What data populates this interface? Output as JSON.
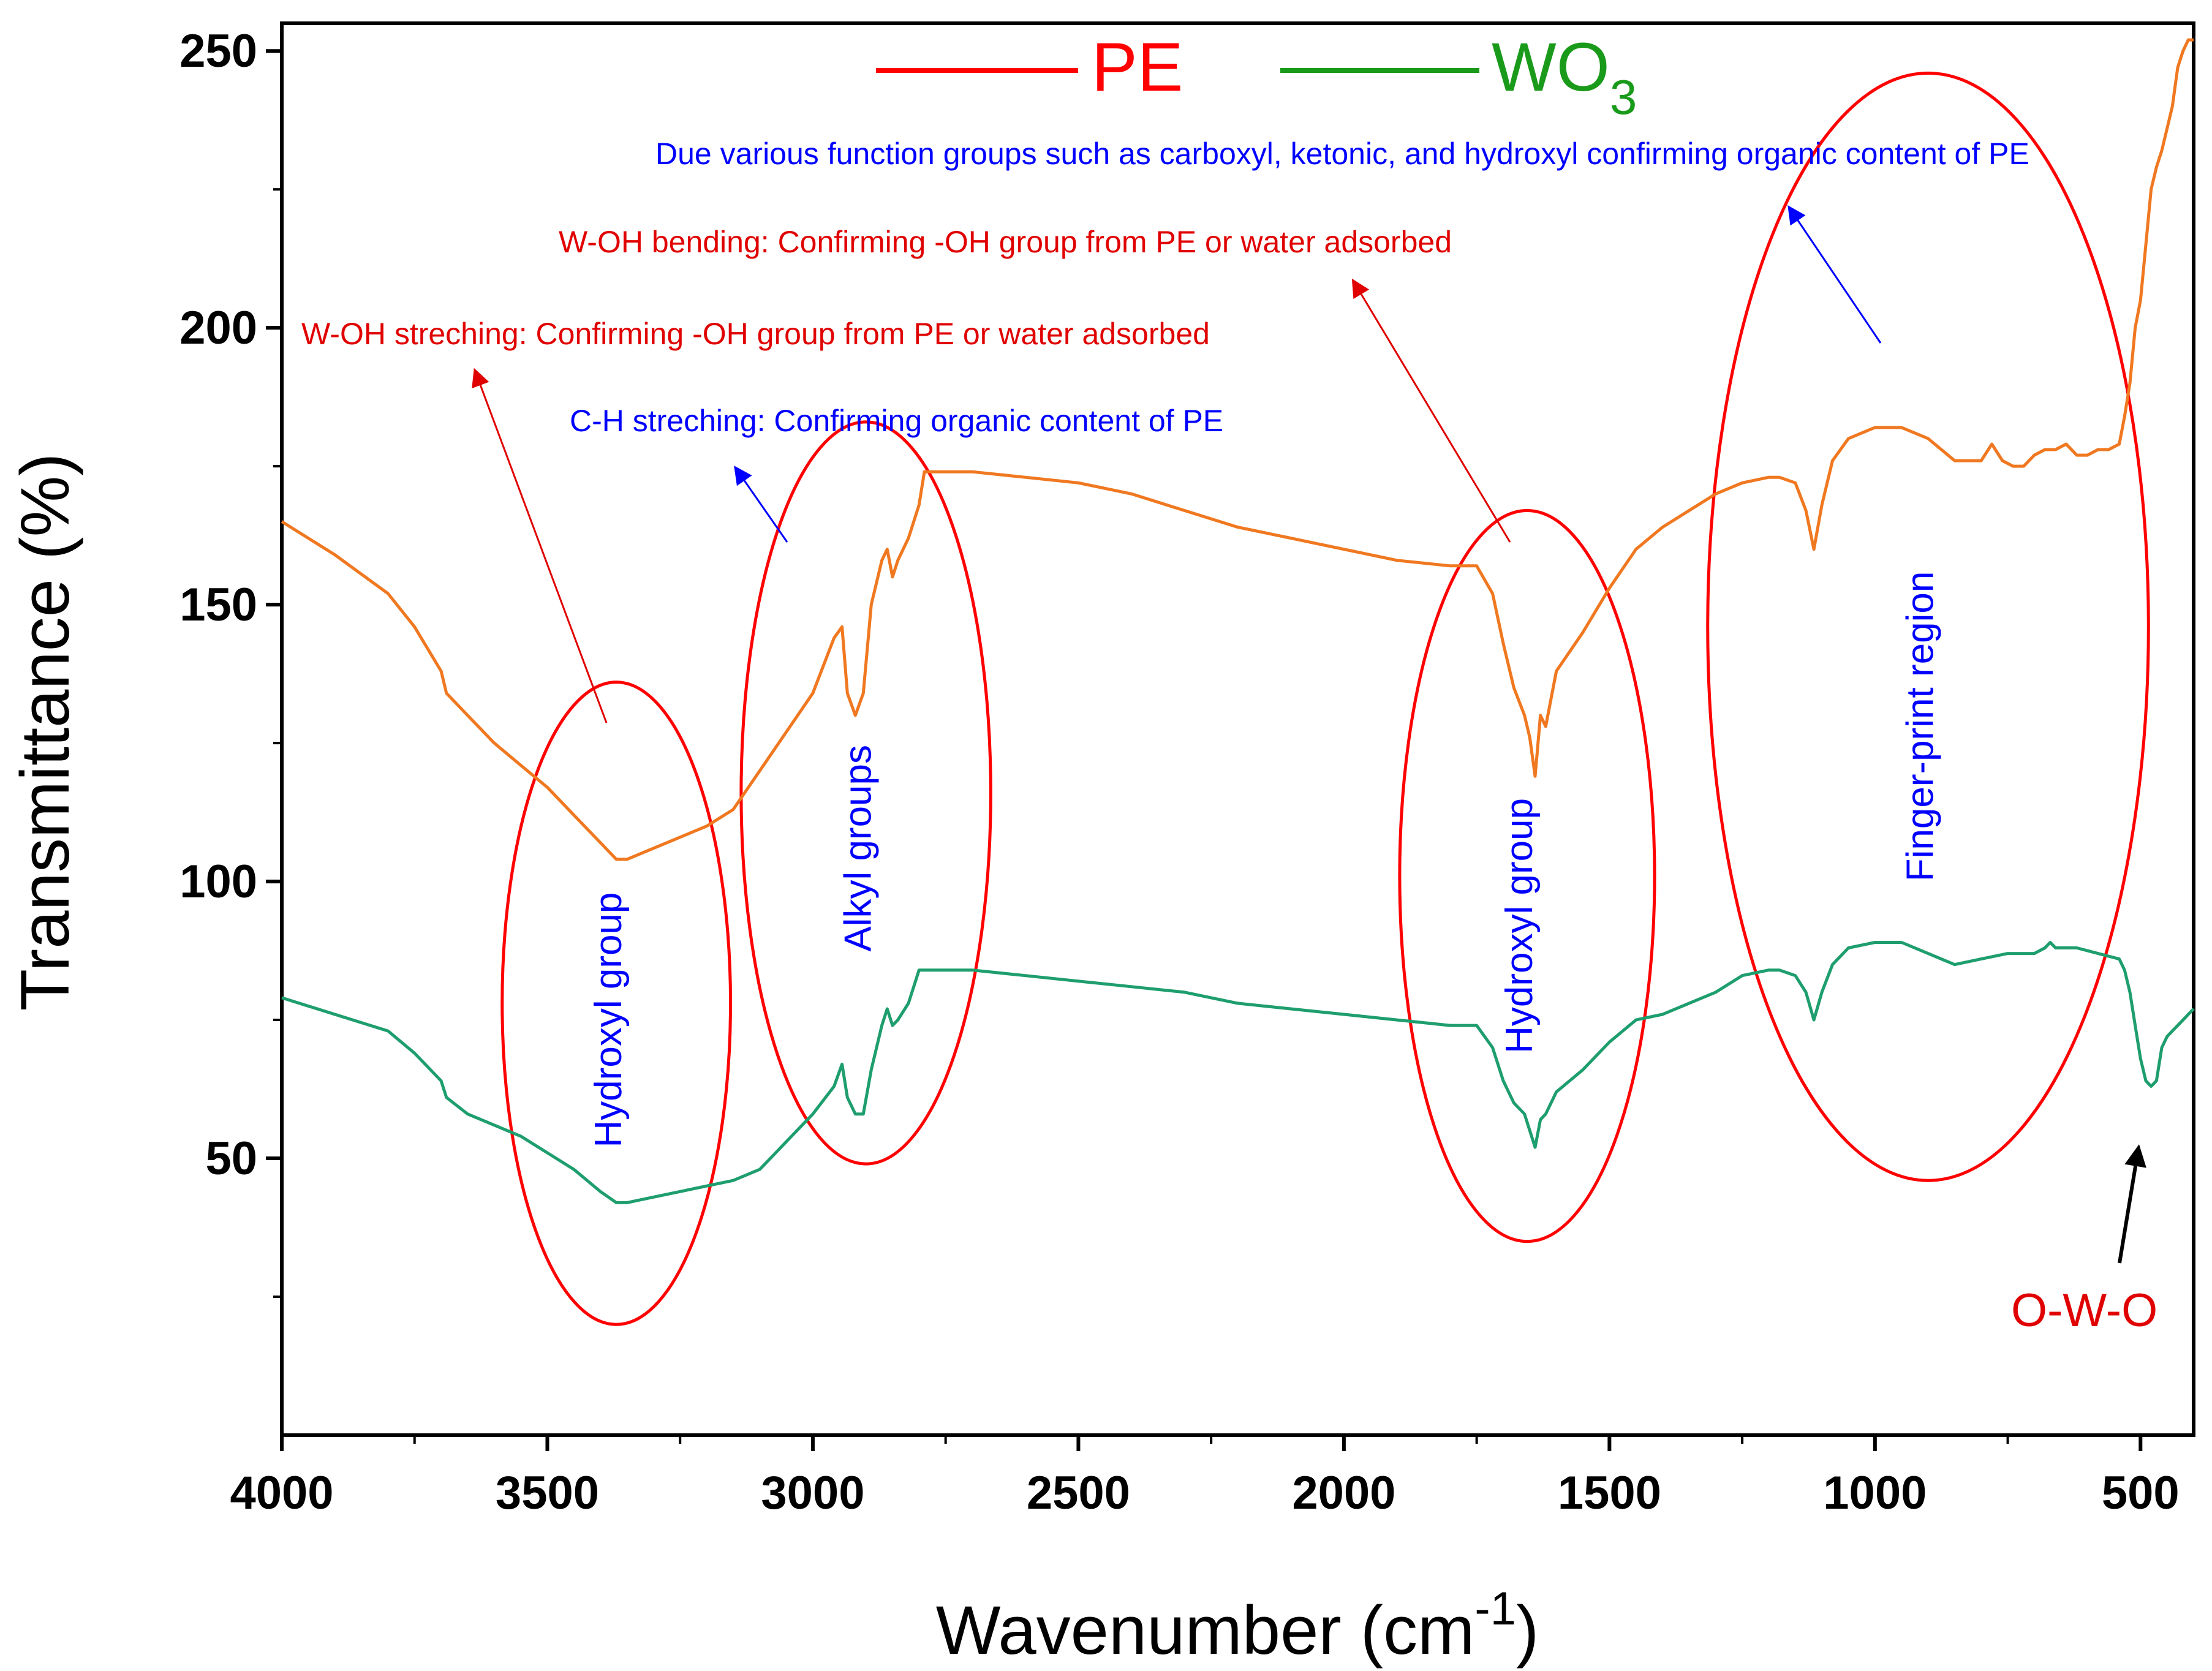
{
  "chart_data": {
    "type": "line",
    "title": "",
    "xlabel": "Wavenumber (cm",
    "xlabel_sup": "-1",
    "xlabel_end": ")",
    "ylabel": "Transmittance (%)",
    "xlim": [
      4000,
      400
    ],
    "ylim": [
      0,
      255
    ],
    "x_ticks": [
      4000,
      3500,
      3000,
      2500,
      2000,
      1500,
      1000,
      500
    ],
    "y_ticks": [
      50,
      100,
      150,
      200,
      250
    ],
    "legend": {
      "placement": "top-center",
      "entries": [
        {
          "name": "PE",
          "color": "#ff0000",
          "sub": ""
        },
        {
          "name": "WO",
          "color": "#1a9a1a",
          "sub": "3"
        }
      ]
    },
    "series": [
      {
        "name": "PE",
        "color": "#f07820",
        "points": [
          [
            4000,
            165
          ],
          [
            3900,
            159
          ],
          [
            3800,
            152
          ],
          [
            3750,
            146
          ],
          [
            3700,
            138
          ],
          [
            3690,
            134
          ],
          [
            3650,
            130
          ],
          [
            3600,
            125
          ],
          [
            3550,
            121
          ],
          [
            3500,
            117
          ],
          [
            3450,
            112
          ],
          [
            3400,
            107
          ],
          [
            3370,
            104
          ],
          [
            3350,
            104
          ],
          [
            3300,
            106
          ],
          [
            3250,
            108
          ],
          [
            3200,
            110
          ],
          [
            3150,
            113
          ],
          [
            3100,
            120
          ],
          [
            3050,
            127
          ],
          [
            3000,
            134
          ],
          [
            2960,
            144
          ],
          [
            2945,
            146
          ],
          [
            2935,
            134
          ],
          [
            2920,
            130
          ],
          [
            2905,
            134
          ],
          [
            2890,
            150
          ],
          [
            2870,
            158
          ],
          [
            2860,
            160
          ],
          [
            2850,
            155
          ],
          [
            2840,
            158
          ],
          [
            2820,
            162
          ],
          [
            2800,
            168
          ],
          [
            2790,
            174
          ],
          [
            2700,
            174
          ],
          [
            2600,
            173
          ],
          [
            2500,
            172
          ],
          [
            2400,
            170
          ],
          [
            2300,
            167
          ],
          [
            2200,
            164
          ],
          [
            2100,
            162
          ],
          [
            2000,
            160
          ],
          [
            1900,
            158
          ],
          [
            1800,
            157
          ],
          [
            1750,
            157
          ],
          [
            1720,
            152
          ],
          [
            1700,
            143
          ],
          [
            1680,
            135
          ],
          [
            1660,
            130
          ],
          [
            1650,
            126
          ],
          [
            1640,
            119
          ],
          [
            1630,
            130
          ],
          [
            1620,
            128
          ],
          [
            1600,
            138
          ],
          [
            1550,
            145
          ],
          [
            1500,
            153
          ],
          [
            1450,
            160
          ],
          [
            1400,
            164
          ],
          [
            1350,
            167
          ],
          [
            1300,
            170
          ],
          [
            1250,
            172
          ],
          [
            1200,
            173
          ],
          [
            1180,
            173
          ],
          [
            1150,
            172
          ],
          [
            1130,
            167
          ],
          [
            1115,
            160
          ],
          [
            1100,
            168
          ],
          [
            1080,
            176
          ],
          [
            1050,
            180
          ],
          [
            1000,
            182
          ],
          [
            950,
            182
          ],
          [
            900,
            180
          ],
          [
            850,
            176
          ],
          [
            800,
            176
          ],
          [
            780,
            179
          ],
          [
            760,
            176
          ],
          [
            740,
            175
          ],
          [
            720,
            175
          ],
          [
            700,
            177
          ],
          [
            680,
            178
          ],
          [
            660,
            178
          ],
          [
            640,
            179
          ],
          [
            620,
            177
          ],
          [
            600,
            177
          ],
          [
            580,
            178
          ],
          [
            560,
            178
          ],
          [
            540,
            179
          ],
          [
            530,
            184
          ],
          [
            520,
            190
          ],
          [
            510,
            200
          ],
          [
            500,
            205
          ],
          [
            490,
            215
          ],
          [
            480,
            225
          ],
          [
            470,
            229
          ],
          [
            460,
            232
          ],
          [
            450,
            236
          ],
          [
            440,
            240
          ],
          [
            430,
            247
          ],
          [
            420,
            250
          ],
          [
            410,
            252
          ],
          [
            400,
            252
          ]
        ]
      },
      {
        "name": "WO3",
        "color": "#1e9e6e",
        "points": [
          [
            4000,
            79
          ],
          [
            3900,
            76
          ],
          [
            3800,
            73
          ],
          [
            3750,
            69
          ],
          [
            3700,
            64
          ],
          [
            3690,
            61
          ],
          [
            3650,
            58
          ],
          [
            3600,
            56
          ],
          [
            3550,
            54
          ],
          [
            3500,
            51
          ],
          [
            3450,
            48
          ],
          [
            3400,
            44
          ],
          [
            3370,
            42
          ],
          [
            3350,
            42
          ],
          [
            3300,
            43
          ],
          [
            3250,
            44
          ],
          [
            3200,
            45
          ],
          [
            3150,
            46
          ],
          [
            3100,
            48
          ],
          [
            3050,
            53
          ],
          [
            3000,
            58
          ],
          [
            2960,
            63
          ],
          [
            2945,
            67
          ],
          [
            2935,
            61
          ],
          [
            2920,
            58
          ],
          [
            2905,
            58
          ],
          [
            2890,
            66
          ],
          [
            2870,
            74
          ],
          [
            2860,
            77
          ],
          [
            2850,
            74
          ],
          [
            2840,
            75
          ],
          [
            2820,
            78
          ],
          [
            2800,
            84
          ],
          [
            2700,
            84
          ],
          [
            2600,
            83
          ],
          [
            2500,
            82
          ],
          [
            2400,
            81
          ],
          [
            2300,
            80
          ],
          [
            2200,
            78
          ],
          [
            2100,
            77
          ],
          [
            2000,
            76
          ],
          [
            1900,
            75
          ],
          [
            1800,
            74
          ],
          [
            1750,
            74
          ],
          [
            1720,
            70
          ],
          [
            1700,
            64
          ],
          [
            1680,
            60
          ],
          [
            1660,
            58
          ],
          [
            1650,
            55
          ],
          [
            1640,
            52
          ],
          [
            1630,
            57
          ],
          [
            1620,
            58
          ],
          [
            1600,
            62
          ],
          [
            1550,
            66
          ],
          [
            1500,
            71
          ],
          [
            1450,
            75
          ],
          [
            1400,
            76
          ],
          [
            1350,
            78
          ],
          [
            1300,
            80
          ],
          [
            1250,
            83
          ],
          [
            1200,
            84
          ],
          [
            1180,
            84
          ],
          [
            1150,
            83
          ],
          [
            1130,
            80
          ],
          [
            1115,
            75
          ],
          [
            1100,
            80
          ],
          [
            1080,
            85
          ],
          [
            1050,
            88
          ],
          [
            1000,
            89
          ],
          [
            950,
            89
          ],
          [
            900,
            87
          ],
          [
            850,
            85
          ],
          [
            800,
            86
          ],
          [
            750,
            87
          ],
          [
            700,
            87
          ],
          [
            680,
            88
          ],
          [
            670,
            89
          ],
          [
            660,
            88
          ],
          [
            620,
            88
          ],
          [
            580,
            87
          ],
          [
            540,
            86
          ],
          [
            530,
            84
          ],
          [
            520,
            80
          ],
          [
            510,
            74
          ],
          [
            500,
            68
          ],
          [
            490,
            64
          ],
          [
            480,
            63
          ],
          [
            470,
            64
          ],
          [
            460,
            70
          ],
          [
            450,
            72
          ],
          [
            440,
            73
          ],
          [
            430,
            74
          ],
          [
            420,
            75
          ],
          [
            410,
            76
          ],
          [
            400,
            77
          ]
        ]
      }
    ],
    "ellipses": [
      {
        "label": "Hydroxyl group",
        "cx": 3370,
        "cy": 78,
        "rx": 215,
        "ry": 58
      },
      {
        "label": "Alkyl groups",
        "cx": 2900,
        "cy": 116,
        "rx": 235,
        "ry": 67
      },
      {
        "label": "Hydroxyl group",
        "cx": 1655,
        "cy": 101,
        "rx": 240,
        "ry": 66
      },
      {
        "label": "Finger-print region",
        "cx": 900,
        "cy": 146,
        "rx": 415,
        "ry": 100
      }
    ],
    "annotations": [
      {
        "text": "Due various function groups such as carboxyl, ketonic, and hydroxyl confirming organic content of PE",
        "color": "#0000ff"
      },
      {
        "text": "W-OH bending: Confirming -OH group from PE or water adsorbed",
        "color": "#e00000"
      },
      {
        "text": "W-OH streching: Confirming -OH group from PE or water adsorbed",
        "color": "#e00000"
      },
      {
        "text": "C-H streching: Confirming organic content of PE",
        "color": "#0000ff"
      },
      {
        "text": "O-W-O",
        "color": "#e00000"
      }
    ]
  }
}
